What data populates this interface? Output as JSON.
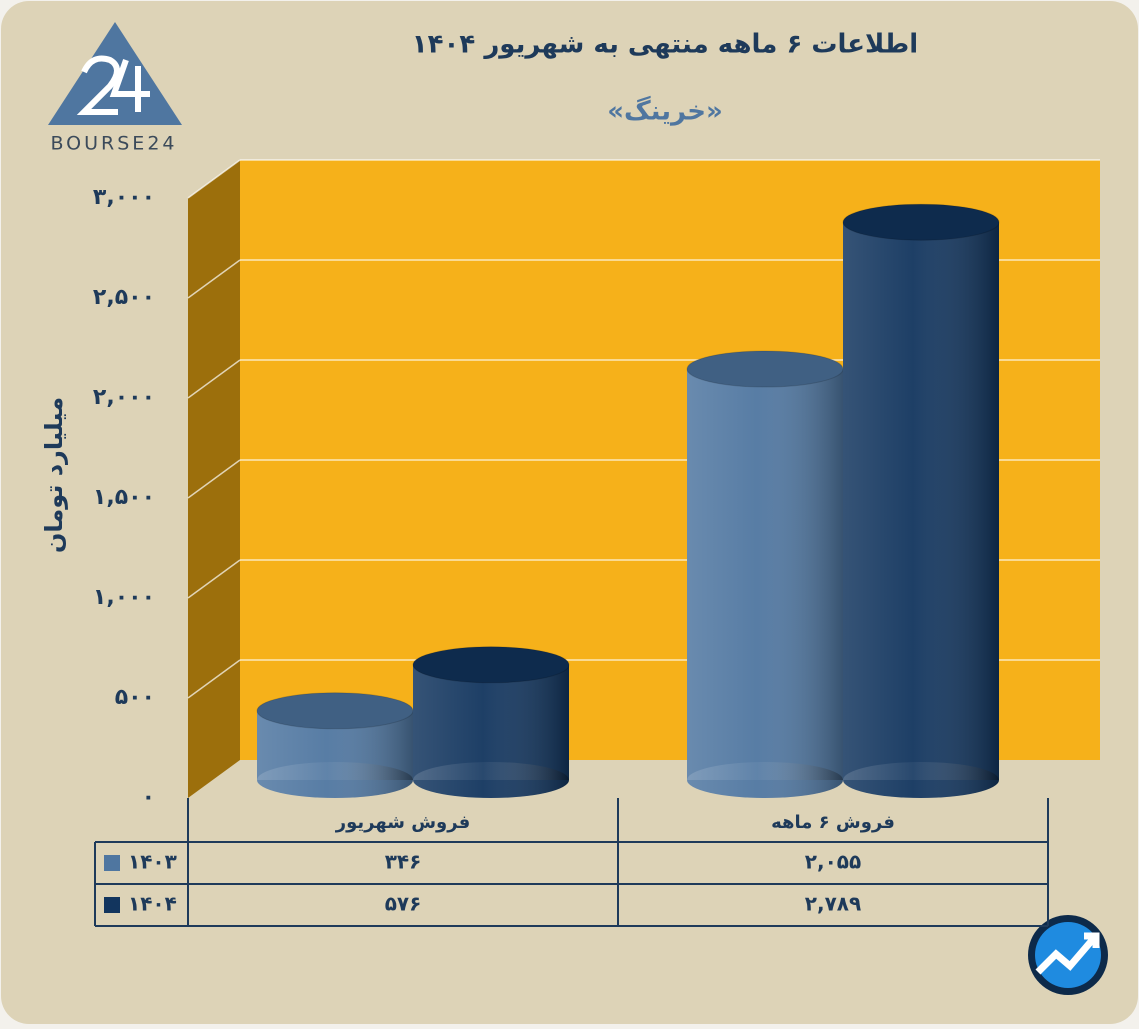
{
  "logo_text": "BOURSE24",
  "chart_data": {
    "type": "cylinder-bar",
    "title": "اطلاعات ۶ ماهه منتهی به شهریور ۱۴۰۴",
    "subtitle": "«خرینگ»",
    "y_label": "میلیارد تومان",
    "categories": [
      "فروش شهریور",
      "فروش ۶ ماهه"
    ],
    "series": [
      {
        "name": "۱۴۰۳",
        "color": "#4f76a0",
        "values": [
          346,
          2055
        ],
        "value_labels": [
          "۳۴۶",
          "۲,۰۵۵"
        ]
      },
      {
        "name": "۱۴۰۴",
        "color": "#12355e",
        "values": [
          576,
          2789
        ],
        "value_labels": [
          "۵۷۶",
          "۲,۷۸۹"
        ]
      }
    ],
    "ylim": [
      0,
      3000
    ],
    "yticks": [
      {
        "value": 0,
        "label": "۰"
      },
      {
        "value": 500,
        "label": "۵۰۰"
      },
      {
        "value": 1000,
        "label": "۱,۰۰۰"
      },
      {
        "value": 1500,
        "label": "۱,۵۰۰"
      },
      {
        "value": 2000,
        "label": "۲,۰۰۰"
      },
      {
        "value": 2500,
        "label": "۲,۵۰۰"
      },
      {
        "value": 3000,
        "label": "۳,۰۰۰"
      }
    ],
    "grid": true,
    "wall_color": "#f6b11a",
    "side_color": "#9c6f0c"
  }
}
